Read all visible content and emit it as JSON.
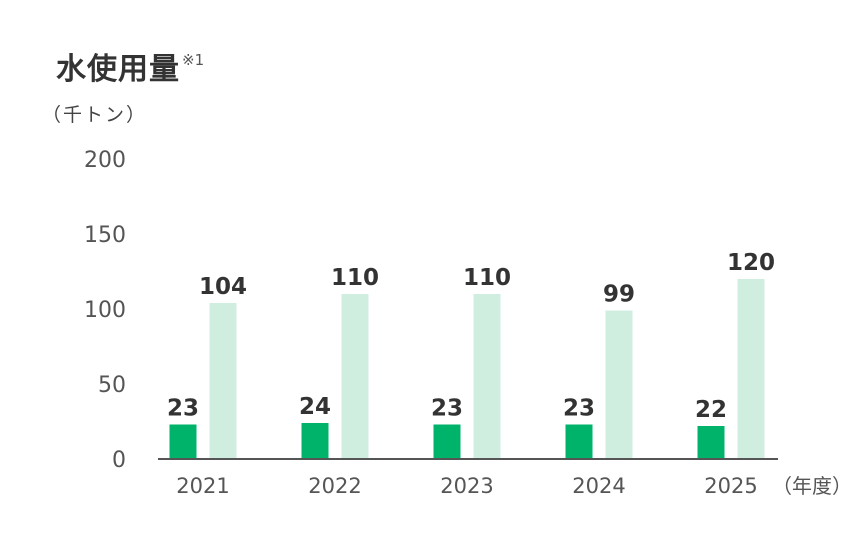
{
  "header": {
    "title": "水使用量",
    "note": "※1",
    "unit": "（千トン）"
  },
  "colors": {
    "series_dark": "#00b36b",
    "series_light": "#cfeee0",
    "axis": "#555555",
    "text": "#333333"
  },
  "chart_data": {
    "type": "bar",
    "categories": [
      "2021",
      "2022",
      "2023",
      "2024",
      "2025"
    ],
    "series": [
      {
        "values": [
          23,
          24,
          23,
          23,
          22
        ]
      },
      {
        "values": [
          104,
          110,
          110,
          99,
          120
        ]
      }
    ],
    "ylabel": "（千トン）",
    "xlabel": "（年度）",
    "yticks": [
      0,
      50,
      100,
      150,
      200
    ],
    "ylim": [
      0,
      200
    ],
    "grid": false,
    "legend": "none"
  }
}
